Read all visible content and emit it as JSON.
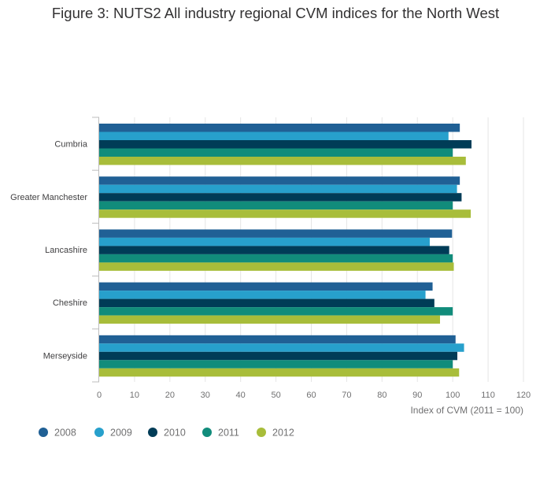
{
  "chart_data": {
    "type": "bar",
    "orientation": "horizontal",
    "title": "Figure 3: NUTS2 All industry regional CVM indices for the North West",
    "xlabel": "Index of CVM (2011 = 100)",
    "ylabel": "",
    "xlim": [
      0,
      120
    ],
    "xticks": [
      0,
      10,
      20,
      30,
      40,
      50,
      60,
      70,
      80,
      90,
      100,
      110,
      120
    ],
    "grid": true,
    "legend_position": "bottom-left",
    "categories": [
      "Cumbria",
      "Greater Manchester",
      "Lancashire",
      "Cheshire",
      "Merseyside"
    ],
    "series": [
      {
        "name": "2008",
        "color": "#206095",
        "values": [
          102.0,
          102.0,
          99.8,
          94.3,
          100.8
        ]
      },
      {
        "name": "2009",
        "color": "#27a0cc",
        "values": [
          98.8,
          101.2,
          93.5,
          92.3,
          103.2
        ]
      },
      {
        "name": "2010",
        "color": "#003c57",
        "values": [
          105.3,
          102.5,
          99.0,
          94.8,
          101.3
        ]
      },
      {
        "name": "2011",
        "color": "#118c7b",
        "values": [
          100.0,
          100.0,
          100.0,
          100.0,
          100.0
        ]
      },
      {
        "name": "2012",
        "color": "#a8bd3a",
        "values": [
          103.7,
          105.1,
          100.3,
          96.4,
          101.8
        ]
      }
    ]
  }
}
